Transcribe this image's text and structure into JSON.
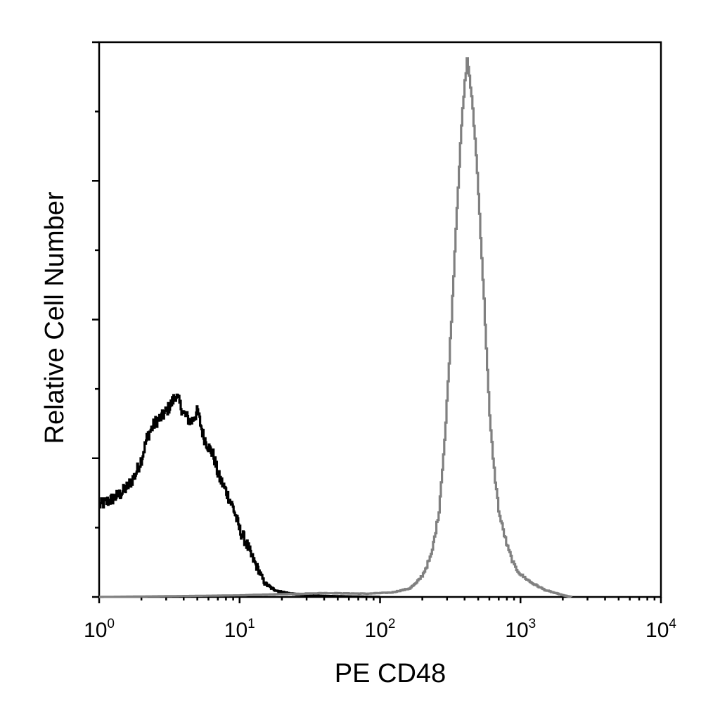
{
  "chart_data": {
    "type": "line",
    "title": "",
    "xlabel": "PE   CD48",
    "ylabel": "Relative Cell Number",
    "x_scale": "log",
    "xlim": [
      1,
      10000
    ],
    "x_tick_labels": [
      {
        "base": "10",
        "exp": "0"
      },
      {
        "base": "10",
        "exp": "1"
      },
      {
        "base": "10",
        "exp": "2"
      },
      {
        "base": "10",
        "exp": "3"
      },
      {
        "base": "10",
        "exp": "4"
      }
    ],
    "ylim": [
      0,
      100
    ],
    "y_tick_labels": "none",
    "grid": false,
    "legend": "none",
    "series": [
      {
        "color": "#000000",
        "x": [
          1.0,
          1.2,
          1.4,
          1.6,
          1.8,
          2.0,
          2.2,
          2.5,
          2.8,
          3.2,
          3.5,
          4.0,
          4.5,
          5.0,
          5.5,
          6.0,
          6.5,
          7.0,
          8.0,
          9.0,
          10.0,
          11.0,
          12.0,
          13.5,
          15.0,
          17.0,
          19.0,
          22.0,
          25.0,
          30.0,
          40.0,
          60.0,
          100.0
        ],
        "y": [
          16.5,
          17.5,
          18.5,
          20.0,
          22.0,
          25.0,
          29.0,
          31.5,
          32.5,
          34.5,
          36.5,
          33.0,
          31.5,
          33.5,
          29.0,
          27.0,
          25.5,
          22.0,
          19.0,
          16.0,
          12.0,
          10.0,
          7.5,
          5.0,
          2.5,
          1.5,
          1.0,
          0.7,
          0.5,
          0.3,
          0.2,
          0.1,
          0.0
        ]
      },
      {
        "color": "#808080",
        "x": [
          1.0,
          5.0,
          10.0,
          20.0,
          40.0,
          80.0,
          120.0,
          160.0,
          180.0,
          200.0,
          230.0,
          260.0,
          290.0,
          320.0,
          350.0,
          380.0,
          400.0,
          415.0,
          430.0,
          450.0,
          480.0,
          510.0,
          550.0,
          600.0,
          650.0,
          700.0,
          800.0,
          900.0,
          1000.0,
          1200.0,
          1500.0,
          2000.0,
          2300.0
        ],
        "y": [
          0.0,
          0.2,
          0.3,
          0.5,
          0.7,
          0.6,
          0.8,
          1.5,
          2.5,
          4.0,
          7.5,
          15.0,
          30.0,
          50.0,
          70.0,
          86.0,
          93.0,
          97.0,
          94.0,
          89.0,
          80.0,
          68.0,
          52.0,
          32.0,
          22.0,
          15.0,
          9.0,
          5.5,
          4.0,
          2.5,
          1.2,
          0.3,
          0.0
        ]
      }
    ]
  }
}
